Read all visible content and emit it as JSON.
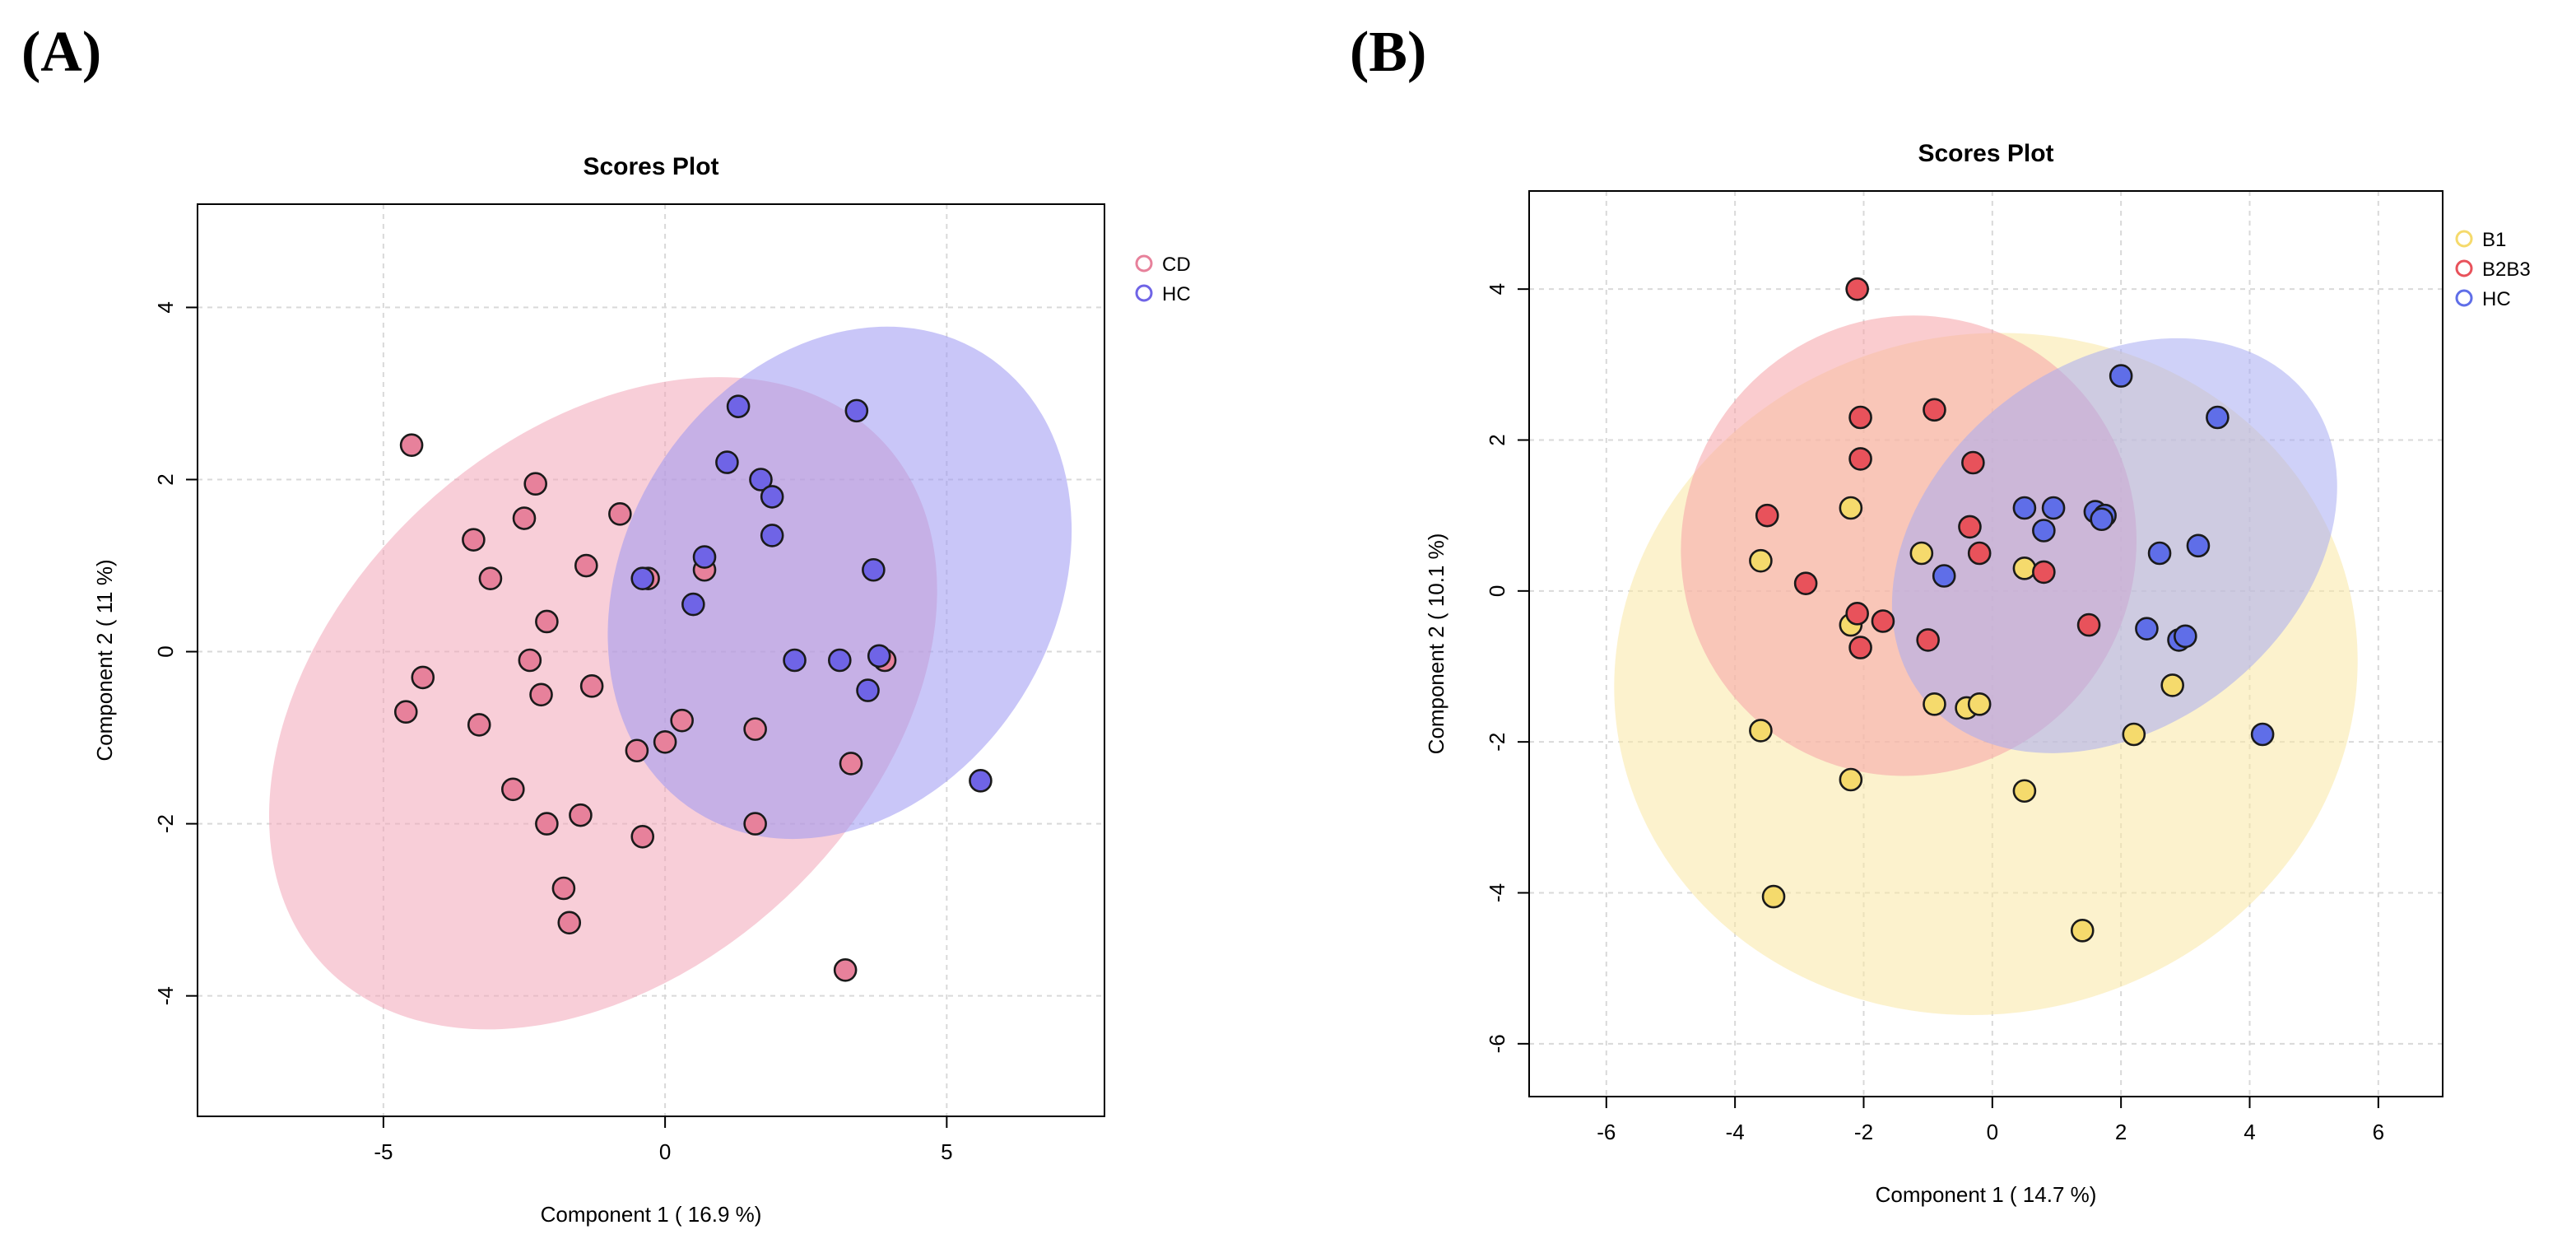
{
  "panels": {
    "a_label": "(A)",
    "b_label": "(B)"
  },
  "chart_data": [
    {
      "type": "scatter",
      "id": "A",
      "title": "Scores Plot",
      "xlabel": "Component 1 ( 16.9 %)",
      "ylabel": "Component 2 ( 11 %)",
      "xlim": [
        -8.3,
        7.8
      ],
      "ylim": [
        -5.4,
        5.2
      ],
      "xticks": [
        -5,
        0,
        5
      ],
      "yticks": [
        -4,
        -2,
        0,
        2,
        4
      ],
      "grid": true,
      "legend_position": "top-right",
      "series": [
        {
          "name": "CD",
          "color": "#e7819b",
          "ellipse_fill": "#f2a5b8",
          "ellipse": {
            "cx": -1.1,
            "cy": -0.6,
            "rx": 6.8,
            "ry": 3.1,
            "angle": -43
          },
          "points": [
            [
              -4.5,
              2.4
            ],
            [
              -2.3,
              1.95
            ],
            [
              -2.5,
              1.55
            ],
            [
              -3.4,
              1.3
            ],
            [
              -3.1,
              0.85
            ],
            [
              -1.4,
              1.0
            ],
            [
              -0.8,
              1.6
            ],
            [
              -0.3,
              0.85
            ],
            [
              0.7,
              0.95
            ],
            [
              -2.1,
              0.35
            ],
            [
              -4.3,
              -0.3
            ],
            [
              -4.6,
              -0.7
            ],
            [
              -2.4,
              -0.1
            ],
            [
              -2.2,
              -0.5
            ],
            [
              -1.3,
              -0.4
            ],
            [
              -3.3,
              -0.85
            ],
            [
              -0.5,
              -1.15
            ],
            [
              0.3,
              -0.8
            ],
            [
              0.0,
              -1.05
            ],
            [
              1.6,
              -0.9
            ],
            [
              -2.7,
              -1.6
            ],
            [
              -1.5,
              -1.9
            ],
            [
              -2.1,
              -2.0
            ],
            [
              -0.4,
              -2.15
            ],
            [
              1.6,
              -2.0
            ],
            [
              3.3,
              -1.3
            ],
            [
              -1.8,
              -2.75
            ],
            [
              -1.7,
              -3.15
            ],
            [
              3.2,
              -3.7
            ],
            [
              3.9,
              -0.1
            ]
          ]
        },
        {
          "name": "HC",
          "color": "#6f64e6",
          "ellipse_fill": "#9c97f2",
          "ellipse": {
            "cx": 3.1,
            "cy": 0.8,
            "rx": 4.8,
            "ry": 2.5,
            "angle": -58
          },
          "points": [
            [
              1.3,
              2.85
            ],
            [
              3.4,
              2.8
            ],
            [
              1.1,
              2.2
            ],
            [
              1.7,
              2.0
            ],
            [
              1.9,
              1.8
            ],
            [
              1.9,
              1.35
            ],
            [
              0.7,
              1.1
            ],
            [
              -0.4,
              0.85
            ],
            [
              0.5,
              0.55
            ],
            [
              3.7,
              0.95
            ],
            [
              2.3,
              -0.1
            ],
            [
              3.1,
              -0.1
            ],
            [
              3.8,
              -0.05
            ],
            [
              3.6,
              -0.45
            ],
            [
              5.6,
              -1.5
            ]
          ]
        }
      ]
    },
    {
      "type": "scatter",
      "id": "B",
      "title": "Scores Plot",
      "xlabel": "Component 1 ( 14.7 %)",
      "ylabel": "Component 2 ( 10.1 %)",
      "xlim": [
        -7.2,
        7.0
      ],
      "ylim": [
        -6.7,
        5.3
      ],
      "xticks": [
        -6,
        -4,
        -2,
        0,
        2,
        4,
        6
      ],
      "yticks": [
        -6,
        -4,
        -2,
        0,
        2,
        4
      ],
      "grid": true,
      "legend_position": "top-right",
      "series": [
        {
          "name": "B1",
          "color": "#f5da6c",
          "ellipse_fill": "#f9e7a4",
          "ellipse": {
            "cx": -0.1,
            "cy": -1.1,
            "rx": 5.8,
            "ry": 4.5,
            "angle": -12
          },
          "points": [
            [
              -3.6,
              0.4
            ],
            [
              -2.2,
              1.1
            ],
            [
              -1.1,
              0.5
            ],
            [
              0.5,
              0.3
            ],
            [
              -2.2,
              -0.45
            ],
            [
              -0.9,
              -1.5
            ],
            [
              -0.4,
              -1.55
            ],
            [
              -0.2,
              -1.5
            ],
            [
              -3.6,
              -1.85
            ],
            [
              -2.2,
              -2.5
            ],
            [
              0.5,
              -2.65
            ],
            [
              2.2,
              -1.9
            ],
            [
              2.8,
              -1.25
            ],
            [
              -3.4,
              -4.05
            ],
            [
              1.4,
              -4.5
            ]
          ]
        },
        {
          "name": "B2B3",
          "color": "#e8525b",
          "ellipse_fill": "#f6a3a8",
          "ellipse": {
            "cx": -1.3,
            "cy": 0.6,
            "rx": 3.6,
            "ry": 3.0,
            "angle": -58
          },
          "points": [
            [
              -2.1,
              4.0
            ],
            [
              -2.05,
              2.3
            ],
            [
              -0.9,
              2.4
            ],
            [
              -2.05,
              1.75
            ],
            [
              -0.3,
              1.7
            ],
            [
              -3.5,
              1.0
            ],
            [
              -0.35,
              0.85
            ],
            [
              -2.9,
              0.1
            ],
            [
              -0.2,
              0.5
            ],
            [
              0.8,
              0.25
            ],
            [
              -2.1,
              -0.3
            ],
            [
              -1.7,
              -0.4
            ],
            [
              -1.0,
              -0.65
            ],
            [
              -2.05,
              -0.75
            ],
            [
              1.5,
              -0.45
            ]
          ]
        },
        {
          "name": "HC",
          "color": "#5f6ee8",
          "ellipse_fill": "#a7acf2",
          "ellipse": {
            "cx": 1.9,
            "cy": 0.6,
            "rx": 3.8,
            "ry": 2.4,
            "angle": -38
          },
          "points": [
            [
              2.0,
              2.85
            ],
            [
              3.5,
              2.3
            ],
            [
              0.5,
              1.1
            ],
            [
              0.95,
              1.1
            ],
            [
              1.6,
              1.05
            ],
            [
              1.75,
              1.0
            ],
            [
              0.8,
              0.8
            ],
            [
              1.7,
              0.95
            ],
            [
              2.6,
              0.5
            ],
            [
              3.2,
              0.6
            ],
            [
              -0.75,
              0.2
            ],
            [
              2.4,
              -0.5
            ],
            [
              2.9,
              -0.65
            ],
            [
              3.0,
              -0.6
            ],
            [
              4.2,
              -1.9
            ]
          ]
        }
      ]
    }
  ]
}
